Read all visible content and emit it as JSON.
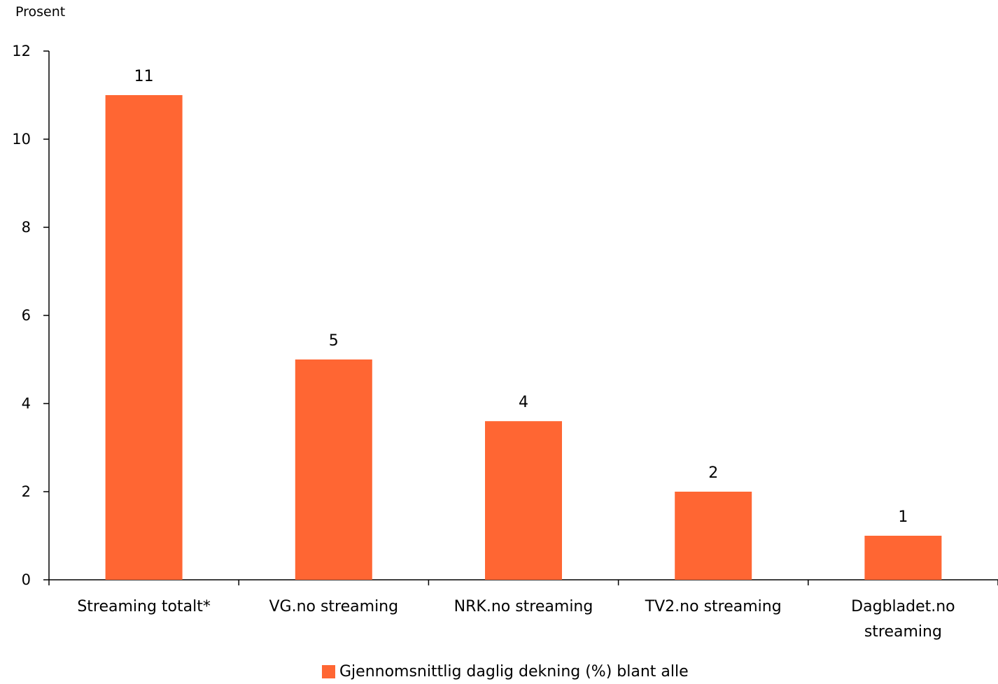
{
  "chart_data": {
    "type": "bar",
    "ylabel": "Prosent",
    "ylim": [
      0,
      12
    ],
    "yticks": [
      0,
      2,
      4,
      6,
      8,
      10,
      12
    ],
    "categories": [
      "Streaming totalt*",
      "VG.no streaming",
      "NRK.no streaming",
      "TV2.no streaming",
      "Dagbladet.no streaming"
    ],
    "series": [
      {
        "name": "Gjennomsnittlig daglig dekning (%) blant alle",
        "color": "#FF6633",
        "values": [
          11,
          5,
          3.6,
          2,
          1
        ],
        "labels": [
          "11",
          "5",
          "4",
          "2",
          "1"
        ]
      }
    ],
    "grid": false,
    "legend": "bottom-center"
  }
}
